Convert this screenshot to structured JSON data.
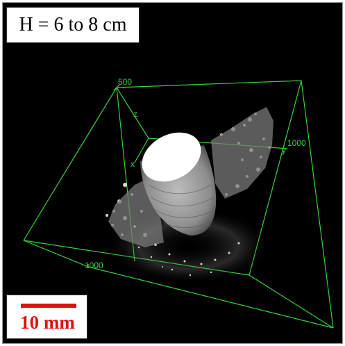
{
  "header": {
    "label": "H = 6 to 8 cm"
  },
  "scale_bar": {
    "label": "10 mm",
    "color": "#e01010"
  },
  "axes": {
    "color": "#3bd13b",
    "z_label": "z",
    "x_label": "x",
    "y_label": "y",
    "tick_top": "500",
    "tick_right": "1000",
    "tick_bottom": "1000"
  },
  "image": {
    "subject": "3D CT reconstruction of a cylindrical core with surrounding fracture debris inside a green bounding box",
    "background": "#000000",
    "specimen_color": "#e8e8e8"
  }
}
